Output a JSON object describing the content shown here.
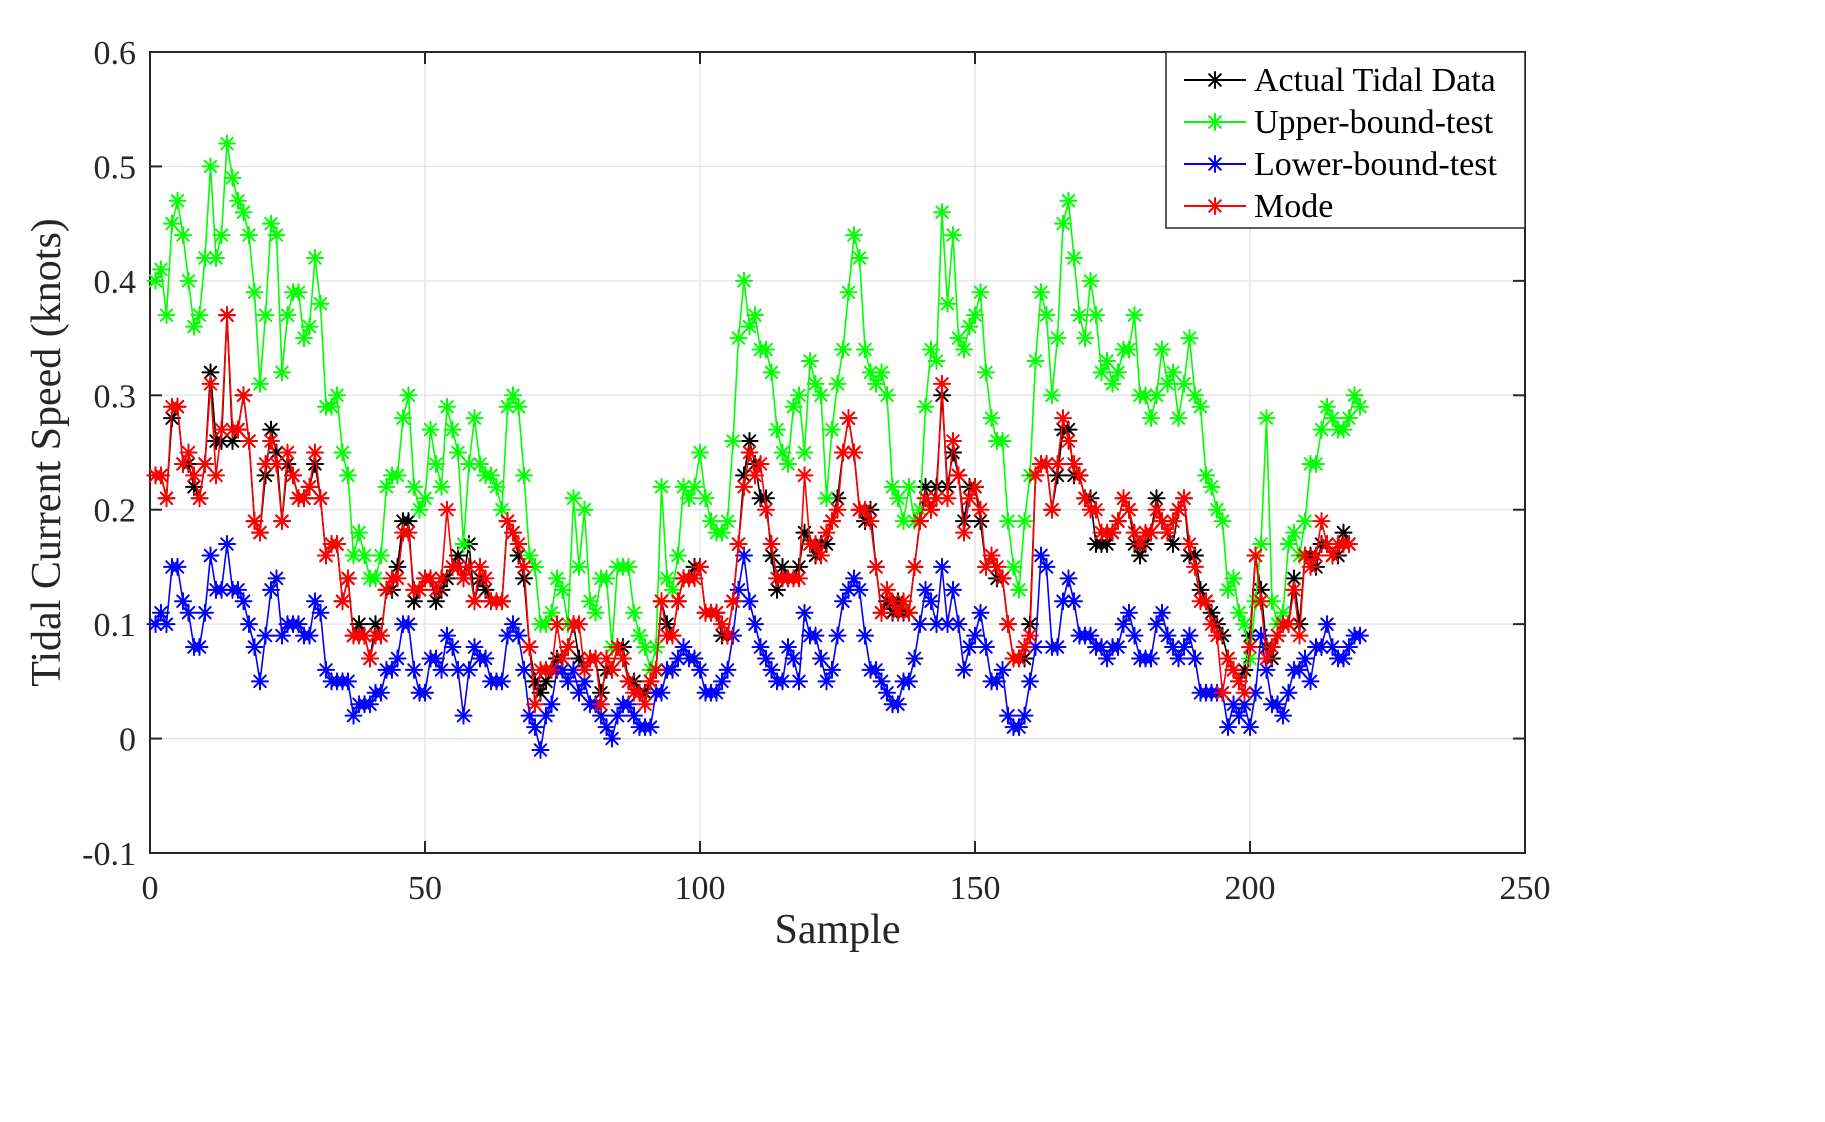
{
  "chart_data": {
    "type": "line",
    "title": "",
    "xlabel": "Sample",
    "ylabel": "Tidal Current Speed (knots)",
    "xlim": [
      0,
      250
    ],
    "ylim": [
      -0.1,
      0.6
    ],
    "xticks": [
      0,
      50,
      100,
      150,
      200,
      250
    ],
    "yticks": [
      -0.1,
      0,
      0.1,
      0.2,
      0.3,
      0.4,
      0.5,
      0.6
    ],
    "xtick_labels": [
      "0",
      "50",
      "100",
      "150",
      "200",
      "250"
    ],
    "ytick_labels": [
      "-0.1",
      "0",
      "0.1",
      "0.2",
      "0.3",
      "0.4",
      "0.5",
      "0.6"
    ],
    "grid": true,
    "legend_position": "top-right",
    "series": [
      {
        "name": "Actual Tidal Data",
        "color": "#000000",
        "marker": "asterisk",
        "values": [
          0.23,
          0.23,
          0.21,
          0.28,
          0.29,
          0.24,
          0.24,
          0.22,
          0.21,
          0.24,
          0.32,
          0.26,
          0.26,
          0.37,
          0.26,
          0.27,
          0.3,
          0.26,
          0.19,
          0.18,
          0.23,
          0.27,
          0.25,
          0.19,
          0.24,
          0.23,
          0.21,
          0.21,
          0.22,
          0.24,
          0.21,
          0.16,
          0.17,
          0.17,
          0.12,
          0.14,
          0.09,
          0.1,
          0.09,
          0.07,
          0.1,
          0.09,
          0.13,
          0.13,
          0.15,
          0.19,
          0.19,
          0.12,
          0.13,
          0.14,
          0.14,
          0.12,
          0.13,
          0.14,
          0.15,
          0.16,
          0.14,
          0.17,
          0.12,
          0.14,
          0.13,
          0.12,
          0.12,
          0.12,
          0.19,
          0.18,
          0.16,
          0.14,
          0.08,
          0.05,
          0.04,
          0.05,
          0.06,
          0.07,
          0.07,
          0.08,
          0.1,
          0.07,
          0.06,
          0.07,
          0.07,
          0.04,
          0.06,
          0.06,
          0.08,
          0.08,
          0.05,
          0.05,
          0.04,
          0.04,
          0.05,
          0.06,
          0.12,
          0.1,
          0.09,
          0.12,
          0.14,
          0.14,
          0.15,
          0.15,
          0.11,
          0.11,
          0.11,
          0.09,
          0.09,
          0.12,
          0.17,
          0.23,
          0.26,
          0.24,
          0.21,
          0.21,
          0.16,
          0.13,
          0.15,
          0.14,
          0.14,
          0.15,
          0.18,
          0.17,
          0.16,
          0.17,
          0.17,
          0.19,
          0.21,
          0.25,
          0.28,
          0.25,
          0.2,
          0.19,
          0.2,
          0.15,
          0.11,
          0.12,
          0.11,
          0.12,
          0.11,
          0.11,
          0.15,
          0.19,
          0.22,
          0.2,
          0.22,
          0.3,
          0.22,
          0.25,
          0.23,
          0.19,
          0.22,
          0.22,
          0.19,
          0.15,
          0.16,
          0.14,
          0.14,
          0.1,
          0.07,
          0.07,
          0.07,
          0.1,
          0.23,
          0.24,
          0.24,
          0.2,
          0.23,
          0.27,
          0.27,
          0.23,
          0.23,
          0.21,
          0.21,
          0.17,
          0.17,
          0.17,
          0.18,
          0.19,
          0.21,
          0.2,
          0.17,
          0.16,
          0.17,
          0.18,
          0.21,
          0.19,
          0.18,
          0.17,
          0.2,
          0.21,
          0.16,
          0.16,
          0.13,
          0.12,
          0.11,
          0.1,
          0.09,
          0.07,
          0.06,
          0.05,
          0.06,
          0.09,
          0.16,
          0.13,
          0.08,
          0.07,
          0.09,
          0.1,
          0.1,
          0.14,
          0.1,
          0.16,
          0.16,
          0.15,
          0.17,
          0.17,
          0.16,
          0.16,
          0.18,
          0.17
        ]
      },
      {
        "name": "Upper-bound-test",
        "color": "#00ff00",
        "marker": "asterisk",
        "values": [
          0.4,
          0.41,
          0.37,
          0.45,
          0.47,
          0.44,
          0.4,
          0.36,
          0.37,
          0.42,
          0.5,
          0.42,
          0.44,
          0.52,
          0.49,
          0.47,
          0.46,
          0.44,
          0.39,
          0.31,
          0.37,
          0.45,
          0.44,
          0.32,
          0.37,
          0.39,
          0.39,
          0.35,
          0.36,
          0.42,
          0.38,
          0.29,
          0.29,
          0.3,
          0.25,
          0.23,
          0.16,
          0.18,
          0.16,
          0.14,
          0.14,
          0.16,
          0.22,
          0.23,
          0.23,
          0.28,
          0.3,
          0.22,
          0.2,
          0.21,
          0.27,
          0.24,
          0.22,
          0.29,
          0.27,
          0.25,
          0.17,
          0.24,
          0.28,
          0.24,
          0.23,
          0.23,
          0.22,
          0.2,
          0.29,
          0.3,
          0.29,
          0.23,
          0.16,
          0.15,
          0.1,
          0.1,
          0.11,
          0.14,
          0.13,
          0.1,
          0.21,
          0.15,
          0.2,
          0.12,
          0.11,
          0.14,
          0.14,
          0.08,
          0.15,
          0.15,
          0.15,
          0.11,
          0.09,
          0.08,
          0.06,
          0.08,
          0.22,
          0.14,
          0.13,
          0.16,
          0.22,
          0.21,
          0.22,
          0.25,
          0.21,
          0.19,
          0.18,
          0.18,
          0.19,
          0.26,
          0.35,
          0.4,
          0.36,
          0.37,
          0.34,
          0.34,
          0.32,
          0.27,
          0.25,
          0.24,
          0.29,
          0.3,
          0.25,
          0.33,
          0.31,
          0.3,
          0.21,
          0.27,
          0.31,
          0.34,
          0.39,
          0.44,
          0.42,
          0.34,
          0.32,
          0.31,
          0.32,
          0.3,
          0.22,
          0.21,
          0.19,
          0.22,
          0.19,
          0.2,
          0.29,
          0.34,
          0.33,
          0.46,
          0.38,
          0.44,
          0.35,
          0.34,
          0.36,
          0.37,
          0.39,
          0.32,
          0.28,
          0.26,
          0.26,
          0.19,
          0.15,
          0.13,
          0.19,
          0.23,
          0.33,
          0.39,
          0.37,
          0.3,
          0.35,
          0.45,
          0.47,
          0.42,
          0.37,
          0.35,
          0.4,
          0.37,
          0.32,
          0.33,
          0.31,
          0.32,
          0.34,
          0.34,
          0.37,
          0.3,
          0.3,
          0.28,
          0.3,
          0.34,
          0.31,
          0.32,
          0.28,
          0.31,
          0.35,
          0.3,
          0.29,
          0.23,
          0.22,
          0.2,
          0.19,
          0.13,
          0.14,
          0.11,
          0.1,
          0.07,
          0.12,
          0.17,
          0.28,
          0.12,
          0.1,
          0.11,
          0.17,
          0.18,
          0.16,
          0.19,
          0.24,
          0.24,
          0.27,
          0.29,
          0.28,
          0.27,
          0.27,
          0.28,
          0.3,
          0.29
        ]
      },
      {
        "name": "Lower-bound-test",
        "color": "#0000ff",
        "marker": "asterisk",
        "values": [
          0.1,
          0.11,
          0.1,
          0.15,
          0.15,
          0.12,
          0.11,
          0.08,
          0.08,
          0.11,
          0.16,
          0.13,
          0.13,
          0.17,
          0.13,
          0.13,
          0.12,
          0.1,
          0.08,
          0.05,
          0.09,
          0.13,
          0.14,
          0.09,
          0.1,
          0.1,
          0.1,
          0.09,
          0.09,
          0.12,
          0.11,
          0.06,
          0.05,
          0.05,
          0.05,
          0.05,
          0.02,
          0.03,
          0.03,
          0.03,
          0.04,
          0.04,
          0.06,
          0.06,
          0.07,
          0.1,
          0.1,
          0.06,
          0.04,
          0.04,
          0.07,
          0.07,
          0.06,
          0.09,
          0.08,
          0.06,
          0.02,
          0.06,
          0.08,
          0.07,
          0.07,
          0.05,
          0.05,
          0.05,
          0.09,
          0.1,
          0.09,
          0.06,
          0.02,
          0.01,
          -0.01,
          0.02,
          0.03,
          0.06,
          0.06,
          0.05,
          0.06,
          0.04,
          0.05,
          0.03,
          0.03,
          0.02,
          0.01,
          0.0,
          0.02,
          0.03,
          0.03,
          0.02,
          0.01,
          0.01,
          0.01,
          0.04,
          0.04,
          0.06,
          0.06,
          0.07,
          0.08,
          0.07,
          0.07,
          0.06,
          0.04,
          0.04,
          0.04,
          0.05,
          0.06,
          0.09,
          0.13,
          0.16,
          0.12,
          0.1,
          0.08,
          0.07,
          0.06,
          0.05,
          0.05,
          0.08,
          0.07,
          0.05,
          0.11,
          0.09,
          0.09,
          0.07,
          0.05,
          0.06,
          0.09,
          0.12,
          0.13,
          0.14,
          0.13,
          0.09,
          0.06,
          0.06,
          0.05,
          0.04,
          0.03,
          0.03,
          0.05,
          0.05,
          0.07,
          0.1,
          0.13,
          0.12,
          0.1,
          0.15,
          0.1,
          0.13,
          0.1,
          0.06,
          0.08,
          0.09,
          0.11,
          0.08,
          0.05,
          0.05,
          0.06,
          0.02,
          0.01,
          0.01,
          0.02,
          0.05,
          0.08,
          0.16,
          0.15,
          0.08,
          0.08,
          0.12,
          0.14,
          0.12,
          0.09,
          0.09,
          0.09,
          0.08,
          0.08,
          0.07,
          0.08,
          0.08,
          0.1,
          0.11,
          0.09,
          0.07,
          0.07,
          0.07,
          0.1,
          0.11,
          0.09,
          0.08,
          0.07,
          0.08,
          0.09,
          0.07,
          0.04,
          0.04,
          0.04,
          0.04,
          0.04,
          0.01,
          0.03,
          0.02,
          0.03,
          0.01,
          0.04,
          0.09,
          0.06,
          0.03,
          0.03,
          0.02,
          0.04,
          0.06,
          0.06,
          0.07,
          0.05,
          0.08,
          0.08,
          0.1,
          0.08,
          0.07,
          0.07,
          0.08,
          0.09,
          0.09
        ]
      },
      {
        "name": "Mode",
        "color": "#ff0000",
        "marker": "asterisk",
        "values": [
          0.23,
          0.23,
          0.21,
          0.29,
          0.29,
          0.24,
          0.25,
          0.23,
          0.21,
          0.24,
          0.31,
          0.23,
          0.27,
          0.37,
          0.27,
          0.27,
          0.3,
          0.26,
          0.19,
          0.18,
          0.24,
          0.26,
          0.24,
          0.19,
          0.25,
          0.23,
          0.21,
          0.21,
          0.22,
          0.25,
          0.21,
          0.16,
          0.17,
          0.17,
          0.12,
          0.14,
          0.09,
          0.09,
          0.09,
          0.07,
          0.09,
          0.09,
          0.13,
          0.14,
          0.14,
          0.18,
          0.18,
          0.13,
          0.13,
          0.14,
          0.14,
          0.13,
          0.14,
          0.2,
          0.15,
          0.15,
          0.14,
          0.15,
          0.12,
          0.15,
          0.14,
          0.12,
          0.12,
          0.12,
          0.19,
          0.18,
          0.17,
          0.15,
          0.08,
          0.03,
          0.06,
          0.06,
          0.06,
          0.1,
          0.07,
          0.08,
          0.1,
          0.1,
          0.06,
          0.07,
          0.07,
          0.03,
          0.07,
          0.06,
          0.08,
          0.07,
          0.05,
          0.04,
          0.04,
          0.03,
          0.05,
          0.06,
          0.12,
          0.09,
          0.09,
          0.12,
          0.14,
          0.14,
          0.14,
          0.15,
          0.11,
          0.11,
          0.11,
          0.1,
          0.09,
          0.12,
          0.17,
          0.22,
          0.25,
          0.23,
          0.24,
          0.2,
          0.17,
          0.14,
          0.14,
          0.14,
          0.14,
          0.14,
          0.23,
          0.17,
          0.17,
          0.16,
          0.18,
          0.19,
          0.2,
          0.25,
          0.28,
          0.25,
          0.2,
          0.2,
          0.19,
          0.15,
          0.11,
          0.13,
          0.12,
          0.11,
          0.12,
          0.11,
          0.15,
          0.19,
          0.21,
          0.2,
          0.21,
          0.31,
          0.21,
          0.26,
          0.23,
          0.18,
          0.21,
          0.22,
          0.2,
          0.15,
          0.16,
          0.15,
          0.14,
          0.1,
          0.07,
          0.07,
          0.08,
          0.09,
          0.23,
          0.24,
          0.24,
          0.2,
          0.24,
          0.28,
          0.26,
          0.24,
          0.23,
          0.21,
          0.2,
          0.2,
          0.18,
          0.18,
          0.18,
          0.19,
          0.21,
          0.2,
          0.18,
          0.17,
          0.18,
          0.18,
          0.2,
          0.19,
          0.18,
          0.19,
          0.2,
          0.21,
          0.17,
          0.15,
          0.12,
          0.12,
          0.1,
          0.09,
          0.04,
          0.07,
          0.06,
          0.05,
          0.04,
          0.08,
          0.16,
          0.12,
          0.07,
          0.08,
          0.09,
          0.1,
          0.1,
          0.13,
          0.09,
          0.16,
          0.15,
          0.16,
          0.19,
          0.17,
          0.16,
          0.17,
          0.17,
          0.17
        ]
      }
    ]
  }
}
